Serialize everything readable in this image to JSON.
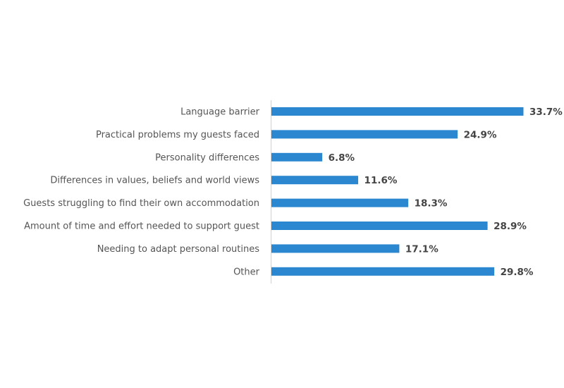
{
  "chart_data": {
    "type": "bar",
    "orientation": "horizontal",
    "categories": [
      "Language barrier",
      "Practical problems my guests faced",
      "Personality differences",
      "Differences in values, beliefs and world views",
      "Guests struggling to find their own accommodation",
      "Amount of time and effort needed to support guest",
      "Needing to adapt personal routines",
      "Other"
    ],
    "values": [
      33.7,
      24.9,
      6.8,
      11.6,
      18.3,
      28.9,
      17.1,
      29.8
    ],
    "data_labels": [
      "33.7%",
      "24.9%",
      "6.8%",
      "11.6%",
      "18.3%",
      "28.9%",
      "17.1%",
      "29.8%"
    ],
    "unit": "%",
    "xlim": [
      0,
      33.7
    ],
    "grid": false,
    "legend": "none",
    "colors": {
      "bar": "#2B88D0",
      "axis": "#D0D0D0",
      "category_text": "#555555",
      "value_text": "#444444"
    }
  }
}
